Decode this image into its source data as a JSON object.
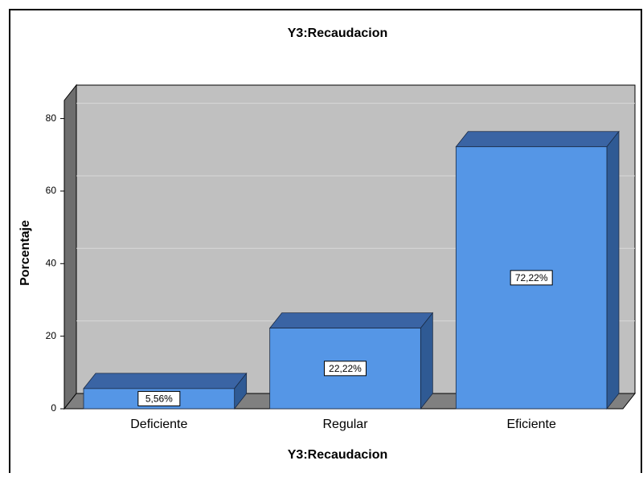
{
  "chart_data": {
    "type": "bar3d",
    "title": "Y3:Recaudacion",
    "x_label": "Y3:Recaudacion",
    "y_label": "Porcentaje",
    "categories": [
      "Deficiente",
      "Regular",
      "Eficiente"
    ],
    "values": [
      5.56,
      22.22,
      72.22
    ],
    "value_labels": [
      "5,56%",
      "22,22%",
      "72,22%"
    ],
    "color": "#5596e6",
    "ylim": [
      0,
      85
    ],
    "yticks": [
      0,
      20,
      40,
      60,
      80
    ],
    "grid": true
  }
}
